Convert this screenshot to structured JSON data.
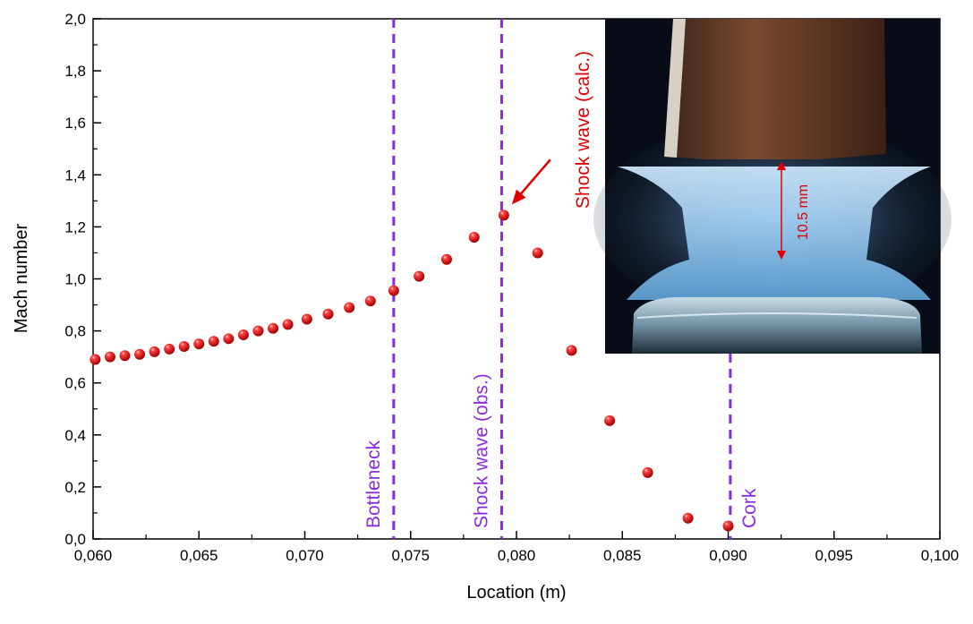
{
  "chart_data": {
    "type": "scatter",
    "xlabel": "Location (m)",
    "ylabel": "Mach number",
    "xlim": [
      0.06,
      0.1
    ],
    "ylim": [
      0.0,
      2.0
    ],
    "x_ticks": [
      "0,060",
      "0,065",
      "0,070",
      "0,075",
      "0,080",
      "0,085",
      "0,090",
      "0,095",
      "0,100"
    ],
    "x_tick_values": [
      0.06,
      0.065,
      0.07,
      0.075,
      0.08,
      0.085,
      0.09,
      0.095,
      0.1
    ],
    "y_ticks": [
      "0,0",
      "0,2",
      "0,4",
      "0,6",
      "0,8",
      "1,0",
      "1,2",
      "1,4",
      "1,6",
      "1,8",
      "2,0"
    ],
    "y_tick_values": [
      0.0,
      0.2,
      0.4,
      0.6,
      0.8,
      1.0,
      1.2,
      1.4,
      1.6,
      1.8,
      2.0
    ],
    "marker_color": "#e00000",
    "points": [
      [
        0.0601,
        0.69
      ],
      [
        0.0608,
        0.7
      ],
      [
        0.0615,
        0.705
      ],
      [
        0.0622,
        0.71
      ],
      [
        0.0629,
        0.72
      ],
      [
        0.0636,
        0.73
      ],
      [
        0.0643,
        0.74
      ],
      [
        0.065,
        0.75
      ],
      [
        0.0657,
        0.76
      ],
      [
        0.0664,
        0.77
      ],
      [
        0.0671,
        0.785
      ],
      [
        0.0678,
        0.8
      ],
      [
        0.0685,
        0.81
      ],
      [
        0.0692,
        0.825
      ],
      [
        0.0701,
        0.845
      ],
      [
        0.0711,
        0.865
      ],
      [
        0.0721,
        0.89
      ],
      [
        0.0731,
        0.915
      ],
      [
        0.0742,
        0.955
      ],
      [
        0.0754,
        1.01
      ],
      [
        0.0767,
        1.075
      ],
      [
        0.078,
        1.16
      ],
      [
        0.0794,
        1.245
      ],
      [
        0.081,
        1.1
      ],
      [
        0.0826,
        0.725
      ],
      [
        0.0844,
        0.455
      ],
      [
        0.0862,
        0.255
      ],
      [
        0.0881,
        0.08
      ],
      [
        0.09,
        0.05
      ]
    ],
    "vertical_lines": [
      {
        "x": 0.0742,
        "label": "Bottleneck"
      },
      {
        "x": 0.0793,
        "label": "Shock wave (obs.)"
      },
      {
        "x": 0.0901,
        "label": "Cork"
      }
    ],
    "vline_color": "#8a2be2",
    "annotation": {
      "text": "Shock wave (calc.)",
      "x": 0.0794,
      "y": 1.245,
      "color": "#e00000"
    },
    "inset": {
      "label": "10.5 mm"
    }
  }
}
